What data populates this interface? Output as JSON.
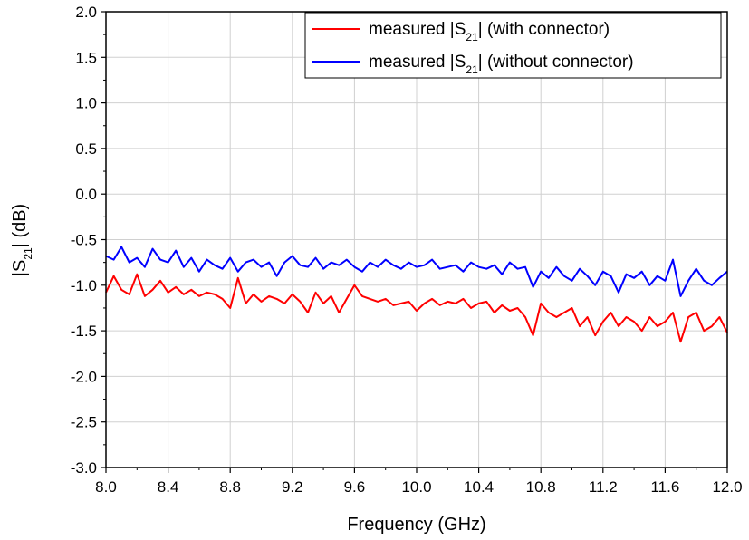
{
  "chart_data": {
    "type": "line",
    "title": "",
    "xlabel": "Frequency (GHz)",
    "ylabel_parts": {
      "pre": "|S",
      "sub": "21",
      "post": "| (dB)"
    },
    "xlim": [
      8.0,
      12.0
    ],
    "ylim": [
      -3.0,
      2.0
    ],
    "grid": true,
    "legend_placement": "top-right",
    "x_ticks": [
      "8.0",
      "8.4",
      "8.8",
      "9.2",
      "9.6",
      "10.0",
      "10.4",
      "10.8",
      "11.2",
      "11.6",
      "12.0"
    ],
    "y_ticks": [
      "2.0",
      "1.5",
      "1.0",
      "0.5",
      "0.0",
      "-0.5",
      "-1.0",
      "-1.5",
      "-2.0",
      "-2.5",
      "-3.0"
    ],
    "series": [
      {
        "name_parts": {
          "pre": "measured |S",
          "sub": "21",
          "post": "| (with connector)"
        },
        "color": "#ff0000",
        "x": [
          8.0,
          8.05,
          8.1,
          8.15,
          8.2,
          8.25,
          8.3,
          8.35,
          8.4,
          8.45,
          8.5,
          8.55,
          8.6,
          8.65,
          8.7,
          8.75,
          8.8,
          8.85,
          8.9,
          8.95,
          9.0,
          9.05,
          9.1,
          9.15,
          9.2,
          9.25,
          9.3,
          9.35,
          9.4,
          9.45,
          9.5,
          9.55,
          9.6,
          9.65,
          9.7,
          9.75,
          9.8,
          9.85,
          9.9,
          9.95,
          10.0,
          10.05,
          10.1,
          10.15,
          10.2,
          10.25,
          10.3,
          10.35,
          10.4,
          10.45,
          10.5,
          10.55,
          10.6,
          10.65,
          10.7,
          10.75,
          10.8,
          10.85,
          10.9,
          10.95,
          11.0,
          11.05,
          11.1,
          11.15,
          11.2,
          11.25,
          11.3,
          11.35,
          11.4,
          11.45,
          11.5,
          11.55,
          11.6,
          11.65,
          11.7,
          11.75,
          11.8,
          11.85,
          11.9,
          11.95,
          12.0
        ],
        "y": [
          -1.08,
          -0.9,
          -1.05,
          -1.1,
          -0.88,
          -1.12,
          -1.05,
          -0.95,
          -1.08,
          -1.02,
          -1.1,
          -1.05,
          -1.12,
          -1.08,
          -1.1,
          -1.15,
          -1.25,
          -0.92,
          -1.2,
          -1.1,
          -1.18,
          -1.12,
          -1.15,
          -1.2,
          -1.1,
          -1.18,
          -1.3,
          -1.08,
          -1.2,
          -1.12,
          -1.3,
          -1.15,
          -1.0,
          -1.12,
          -1.15,
          -1.18,
          -1.15,
          -1.22,
          -1.2,
          -1.18,
          -1.28,
          -1.2,
          -1.15,
          -1.22,
          -1.18,
          -1.2,
          -1.15,
          -1.25,
          -1.2,
          -1.18,
          -1.3,
          -1.22,
          -1.28,
          -1.25,
          -1.35,
          -1.55,
          -1.2,
          -1.3,
          -1.35,
          -1.3,
          -1.25,
          -1.45,
          -1.35,
          -1.55,
          -1.4,
          -1.3,
          -1.45,
          -1.35,
          -1.4,
          -1.5,
          -1.35,
          -1.45,
          -1.4,
          -1.3,
          -1.62,
          -1.35,
          -1.3,
          -1.5,
          -1.45,
          -1.35,
          -1.52
        ]
      },
      {
        "name_parts": {
          "pre": "measured |S",
          "sub": "21",
          "post": "| (without connector)"
        },
        "color": "#0000ff",
        "x": [
          8.0,
          8.05,
          8.1,
          8.15,
          8.2,
          8.25,
          8.3,
          8.35,
          8.4,
          8.45,
          8.5,
          8.55,
          8.6,
          8.65,
          8.7,
          8.75,
          8.8,
          8.85,
          8.9,
          8.95,
          9.0,
          9.05,
          9.1,
          9.15,
          9.2,
          9.25,
          9.3,
          9.35,
          9.4,
          9.45,
          9.5,
          9.55,
          9.6,
          9.65,
          9.7,
          9.75,
          9.8,
          9.85,
          9.9,
          9.95,
          10.0,
          10.05,
          10.1,
          10.15,
          10.2,
          10.25,
          10.3,
          10.35,
          10.4,
          10.45,
          10.5,
          10.55,
          10.6,
          10.65,
          10.7,
          10.75,
          10.8,
          10.85,
          10.9,
          10.95,
          11.0,
          11.05,
          11.1,
          11.15,
          11.2,
          11.25,
          11.3,
          11.35,
          11.4,
          11.45,
          11.5,
          11.55,
          11.6,
          11.65,
          11.7,
          11.75,
          11.8,
          11.85,
          11.9,
          11.95,
          12.0
        ],
        "y": [
          -0.68,
          -0.72,
          -0.58,
          -0.75,
          -0.7,
          -0.8,
          -0.6,
          -0.72,
          -0.75,
          -0.62,
          -0.8,
          -0.7,
          -0.85,
          -0.72,
          -0.78,
          -0.82,
          -0.7,
          -0.85,
          -0.75,
          -0.72,
          -0.8,
          -0.75,
          -0.9,
          -0.75,
          -0.68,
          -0.78,
          -0.8,
          -0.7,
          -0.82,
          -0.75,
          -0.78,
          -0.72,
          -0.8,
          -0.85,
          -0.75,
          -0.8,
          -0.72,
          -0.78,
          -0.82,
          -0.75,
          -0.8,
          -0.78,
          -0.72,
          -0.82,
          -0.8,
          -0.78,
          -0.85,
          -0.75,
          -0.8,
          -0.82,
          -0.78,
          -0.88,
          -0.75,
          -0.82,
          -0.8,
          -1.02,
          -0.85,
          -0.92,
          -0.8,
          -0.9,
          -0.95,
          -0.82,
          -0.9,
          -1.0,
          -0.85,
          -0.9,
          -1.08,
          -0.88,
          -0.92,
          -0.85,
          -1.0,
          -0.9,
          -0.95,
          -0.72,
          -1.12,
          -0.95,
          -0.82,
          -0.95,
          -1.0,
          -0.92,
          -0.85
        ]
      }
    ]
  }
}
